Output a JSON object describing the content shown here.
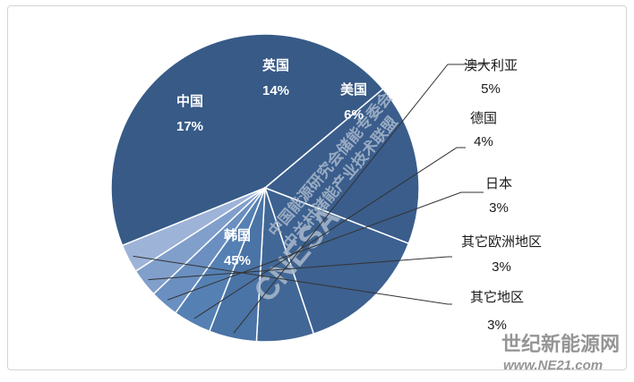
{
  "chart_data": {
    "type": "pie",
    "title": "",
    "slices": [
      {
        "label": "韩国",
        "value": 45,
        "display": "45%",
        "color": "#375a87"
      },
      {
        "label": "中国",
        "value": 17,
        "display": "17%",
        "color": "#3a5d8c"
      },
      {
        "label": "英国",
        "value": 14,
        "display": "14%",
        "color": "#3d6190"
      },
      {
        "label": "美国",
        "value": 6,
        "display": "6%",
        "color": "#416796"
      },
      {
        "label": "澳大利亚",
        "value": 5,
        "display": "5%",
        "color": "#4a73a6"
      },
      {
        "label": "德国",
        "value": 4,
        "display": "4%",
        "color": "#5580b3"
      },
      {
        "label": "日本",
        "value": 3,
        "display": "3%",
        "color": "#6a8fc0"
      },
      {
        "label": "其它欧洲地区",
        "value": 3,
        "display": "3%",
        "color": "#819fcb"
      },
      {
        "label": "其它地区",
        "value": 3,
        "display": "3%",
        "color": "#9db3d8"
      }
    ],
    "legend": "none",
    "label_placement": "inside for large slices, outside with leader lines for small slices"
  },
  "watermark": {
    "logo": "CNESA",
    "line1": "中国能源研究会储能专委会",
    "line2": "中关村储能产业技术联盟"
  },
  "site_mark": {
    "name": "世纪新能源网",
    "url": "www.NE21.com"
  }
}
